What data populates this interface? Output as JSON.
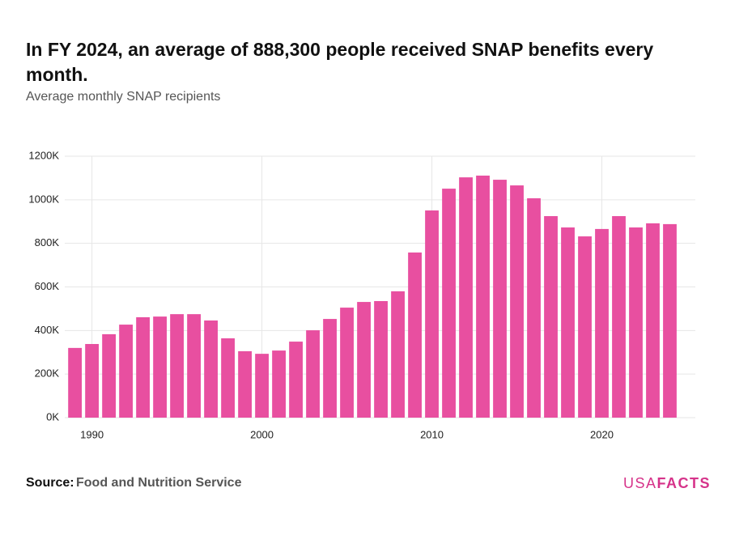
{
  "chart_data": {
    "type": "bar",
    "title": "In FY 2024, an average of 888,300 people received SNAP benefits every month.",
    "subtitle": "Average monthly SNAP recipients",
    "x": [
      1989,
      1990,
      1991,
      1992,
      1993,
      1994,
      1995,
      1996,
      1997,
      1998,
      1999,
      2000,
      2001,
      2002,
      2003,
      2004,
      2005,
      2006,
      2007,
      2008,
      2009,
      2010,
      2011,
      2012,
      2013,
      2014,
      2015,
      2016,
      2017,
      2018,
      2019,
      2020,
      2021,
      2022,
      2023,
      2024
    ],
    "values": [
      320,
      338,
      383,
      427,
      461,
      464,
      475,
      475,
      446,
      364,
      305,
      293,
      308,
      349,
      401,
      453,
      505,
      531,
      535,
      580,
      758,
      951,
      1051,
      1103,
      1111,
      1092,
      1066,
      1007,
      925,
      873,
      832,
      866,
      925,
      873,
      892,
      888.3
    ],
    "color": "#e84fa0",
    "xlim": [
      1988.4,
      2025.5
    ],
    "xticks": [
      1990,
      2000,
      2010,
      2020
    ],
    "ylim": [
      0,
      1200
    ],
    "yticks": [
      {
        "value": 0,
        "label": "0K"
      },
      {
        "value": 200,
        "label": "200K"
      },
      {
        "value": 400,
        "label": "400K"
      },
      {
        "value": 600,
        "label": "600K"
      },
      {
        "value": 800,
        "label": "800K"
      },
      {
        "value": 1000,
        "label": "1000K"
      },
      {
        "value": 1200,
        "label": "1200K"
      }
    ],
    "grid": true,
    "source_label": "Source:",
    "source": "Food and Nutrition Service",
    "logo": [
      "USA",
      "FACTS"
    ]
  }
}
